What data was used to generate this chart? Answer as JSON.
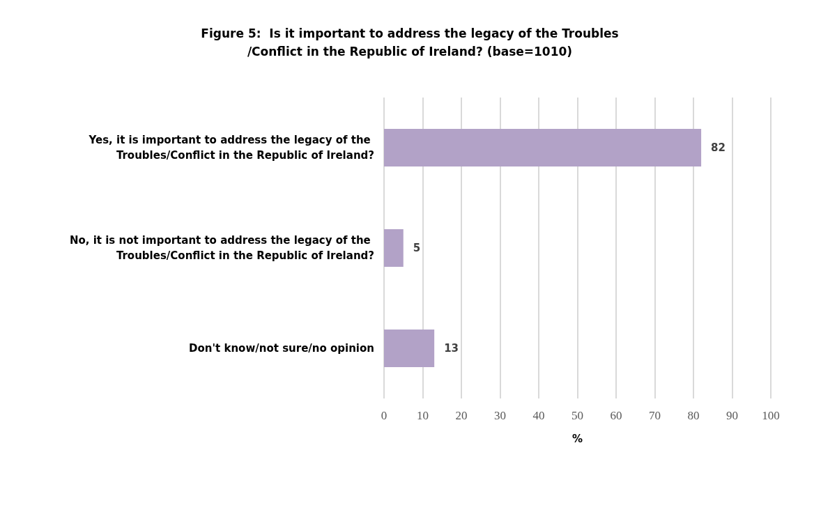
{
  "chart_data": {
    "type": "bar",
    "orientation": "horizontal",
    "title": "Figure 5:  Is it important to address the legacy of the Troubles/Conflict in the Republic of Ireland? (base=1010)",
    "categories": [
      "Yes, it is important to address the legacy of the Troubles/Conflict in the Republic of Ireland?",
      "No, it is not important to address the legacy of the Troubles/Conflict in the Republic of Ireland?",
      "Don't know/not sure/no opinion"
    ],
    "values": [
      82,
      5,
      13
    ],
    "color": "#b2a2c7",
    "xlabel": "%",
    "xlim": [
      0,
      100
    ],
    "xticks": [
      0,
      10,
      20,
      30,
      40,
      50,
      60,
      70,
      80,
      90,
      100
    ],
    "grid": "x",
    "data_labels": true
  }
}
